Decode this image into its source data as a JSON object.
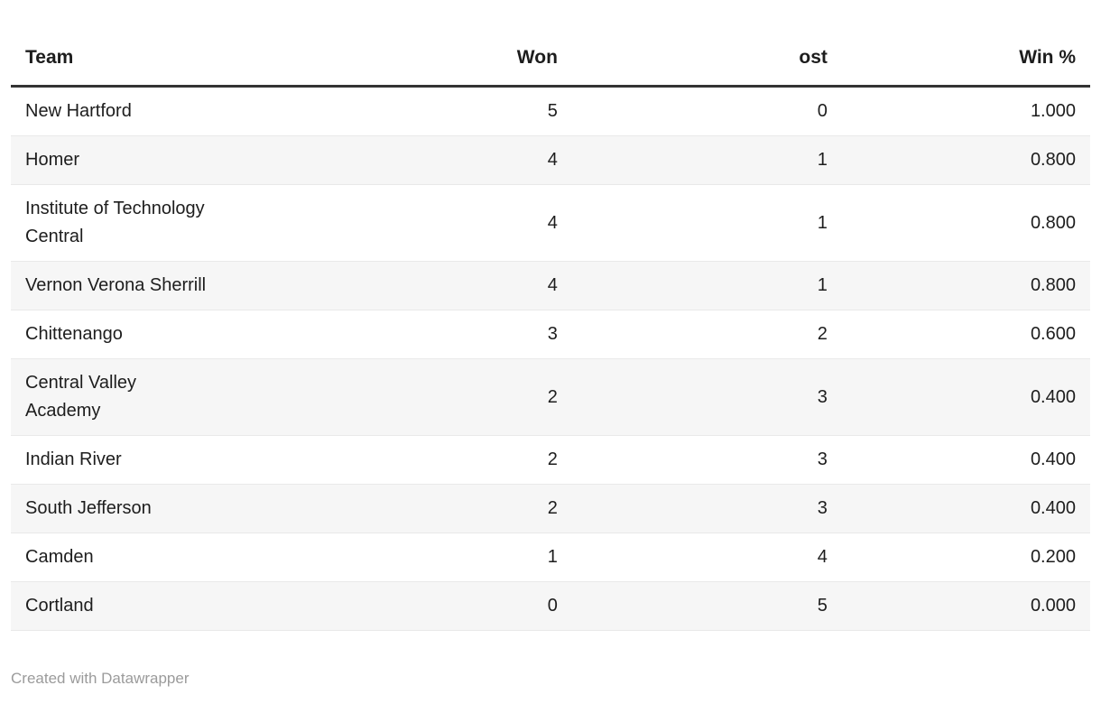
{
  "table": {
    "columns": [
      {
        "id": "team",
        "label": "Team",
        "align": "left"
      },
      {
        "id": "won",
        "label": "Won",
        "align": "right"
      },
      {
        "id": "lost",
        "label": "ost",
        "align": "right"
      },
      {
        "id": "win_pct",
        "label": "Win %",
        "align": "right"
      }
    ],
    "rows": [
      {
        "team": "New Hartford",
        "won": "5",
        "lost": "0",
        "win_pct": "1.000"
      },
      {
        "team": "Homer",
        "won": "4",
        "lost": "1",
        "win_pct": "0.800"
      },
      {
        "team": "Institute of Technology\nCentral",
        "won": "4",
        "lost": "1",
        "win_pct": "0.800"
      },
      {
        "team": "Vernon Verona Sherrill",
        "won": "4",
        "lost": "1",
        "win_pct": "0.800"
      },
      {
        "team": "Chittenango",
        "won": "3",
        "lost": "2",
        "win_pct": "0.600"
      },
      {
        "team": "Central Valley\nAcademy",
        "won": "2",
        "lost": "3",
        "win_pct": "0.400"
      },
      {
        "team": "Indian River",
        "won": "2",
        "lost": "3",
        "win_pct": "0.400"
      },
      {
        "team": "South Jefferson",
        "won": "2",
        "lost": "3",
        "win_pct": "0.400"
      },
      {
        "team": "Camden",
        "won": "1",
        "lost": "4",
        "win_pct": "0.200"
      },
      {
        "team": "Cortland",
        "won": "0",
        "lost": "5",
        "win_pct": "0.000"
      }
    ]
  },
  "footer": {
    "credit": "Created with Datawrapper"
  },
  "colors": {
    "text": "#1d1d1d",
    "header_rule": "#333333",
    "row_stripe": "#f6f6f6",
    "row_divider": "#e9e9e9",
    "credit_text": "#9b9b9b",
    "background": "#ffffff"
  },
  "chart_data": {
    "type": "table",
    "title": "",
    "columns": [
      "Team",
      "Won",
      "ost",
      "Win %"
    ],
    "rows": [
      [
        "New Hartford",
        5,
        0,
        1.0
      ],
      [
        "Homer",
        4,
        1,
        0.8
      ],
      [
        "Institute of Technology Central",
        4,
        1,
        0.8
      ],
      [
        "Vernon Verona Sherrill",
        4,
        1,
        0.8
      ],
      [
        "Chittenango",
        3,
        2,
        0.6
      ],
      [
        "Central Valley Academy",
        2,
        3,
        0.4
      ],
      [
        "Indian River",
        2,
        3,
        0.4
      ],
      [
        "South Jefferson",
        2,
        3,
        0.4
      ],
      [
        "Camden",
        1,
        4,
        0.2
      ],
      [
        "Cortland",
        0,
        5,
        0.0
      ]
    ],
    "layout_hints": {
      "zebra_striping": true,
      "numeric_columns_right_aligned": true,
      "credit": "Created with Datawrapper"
    }
  }
}
